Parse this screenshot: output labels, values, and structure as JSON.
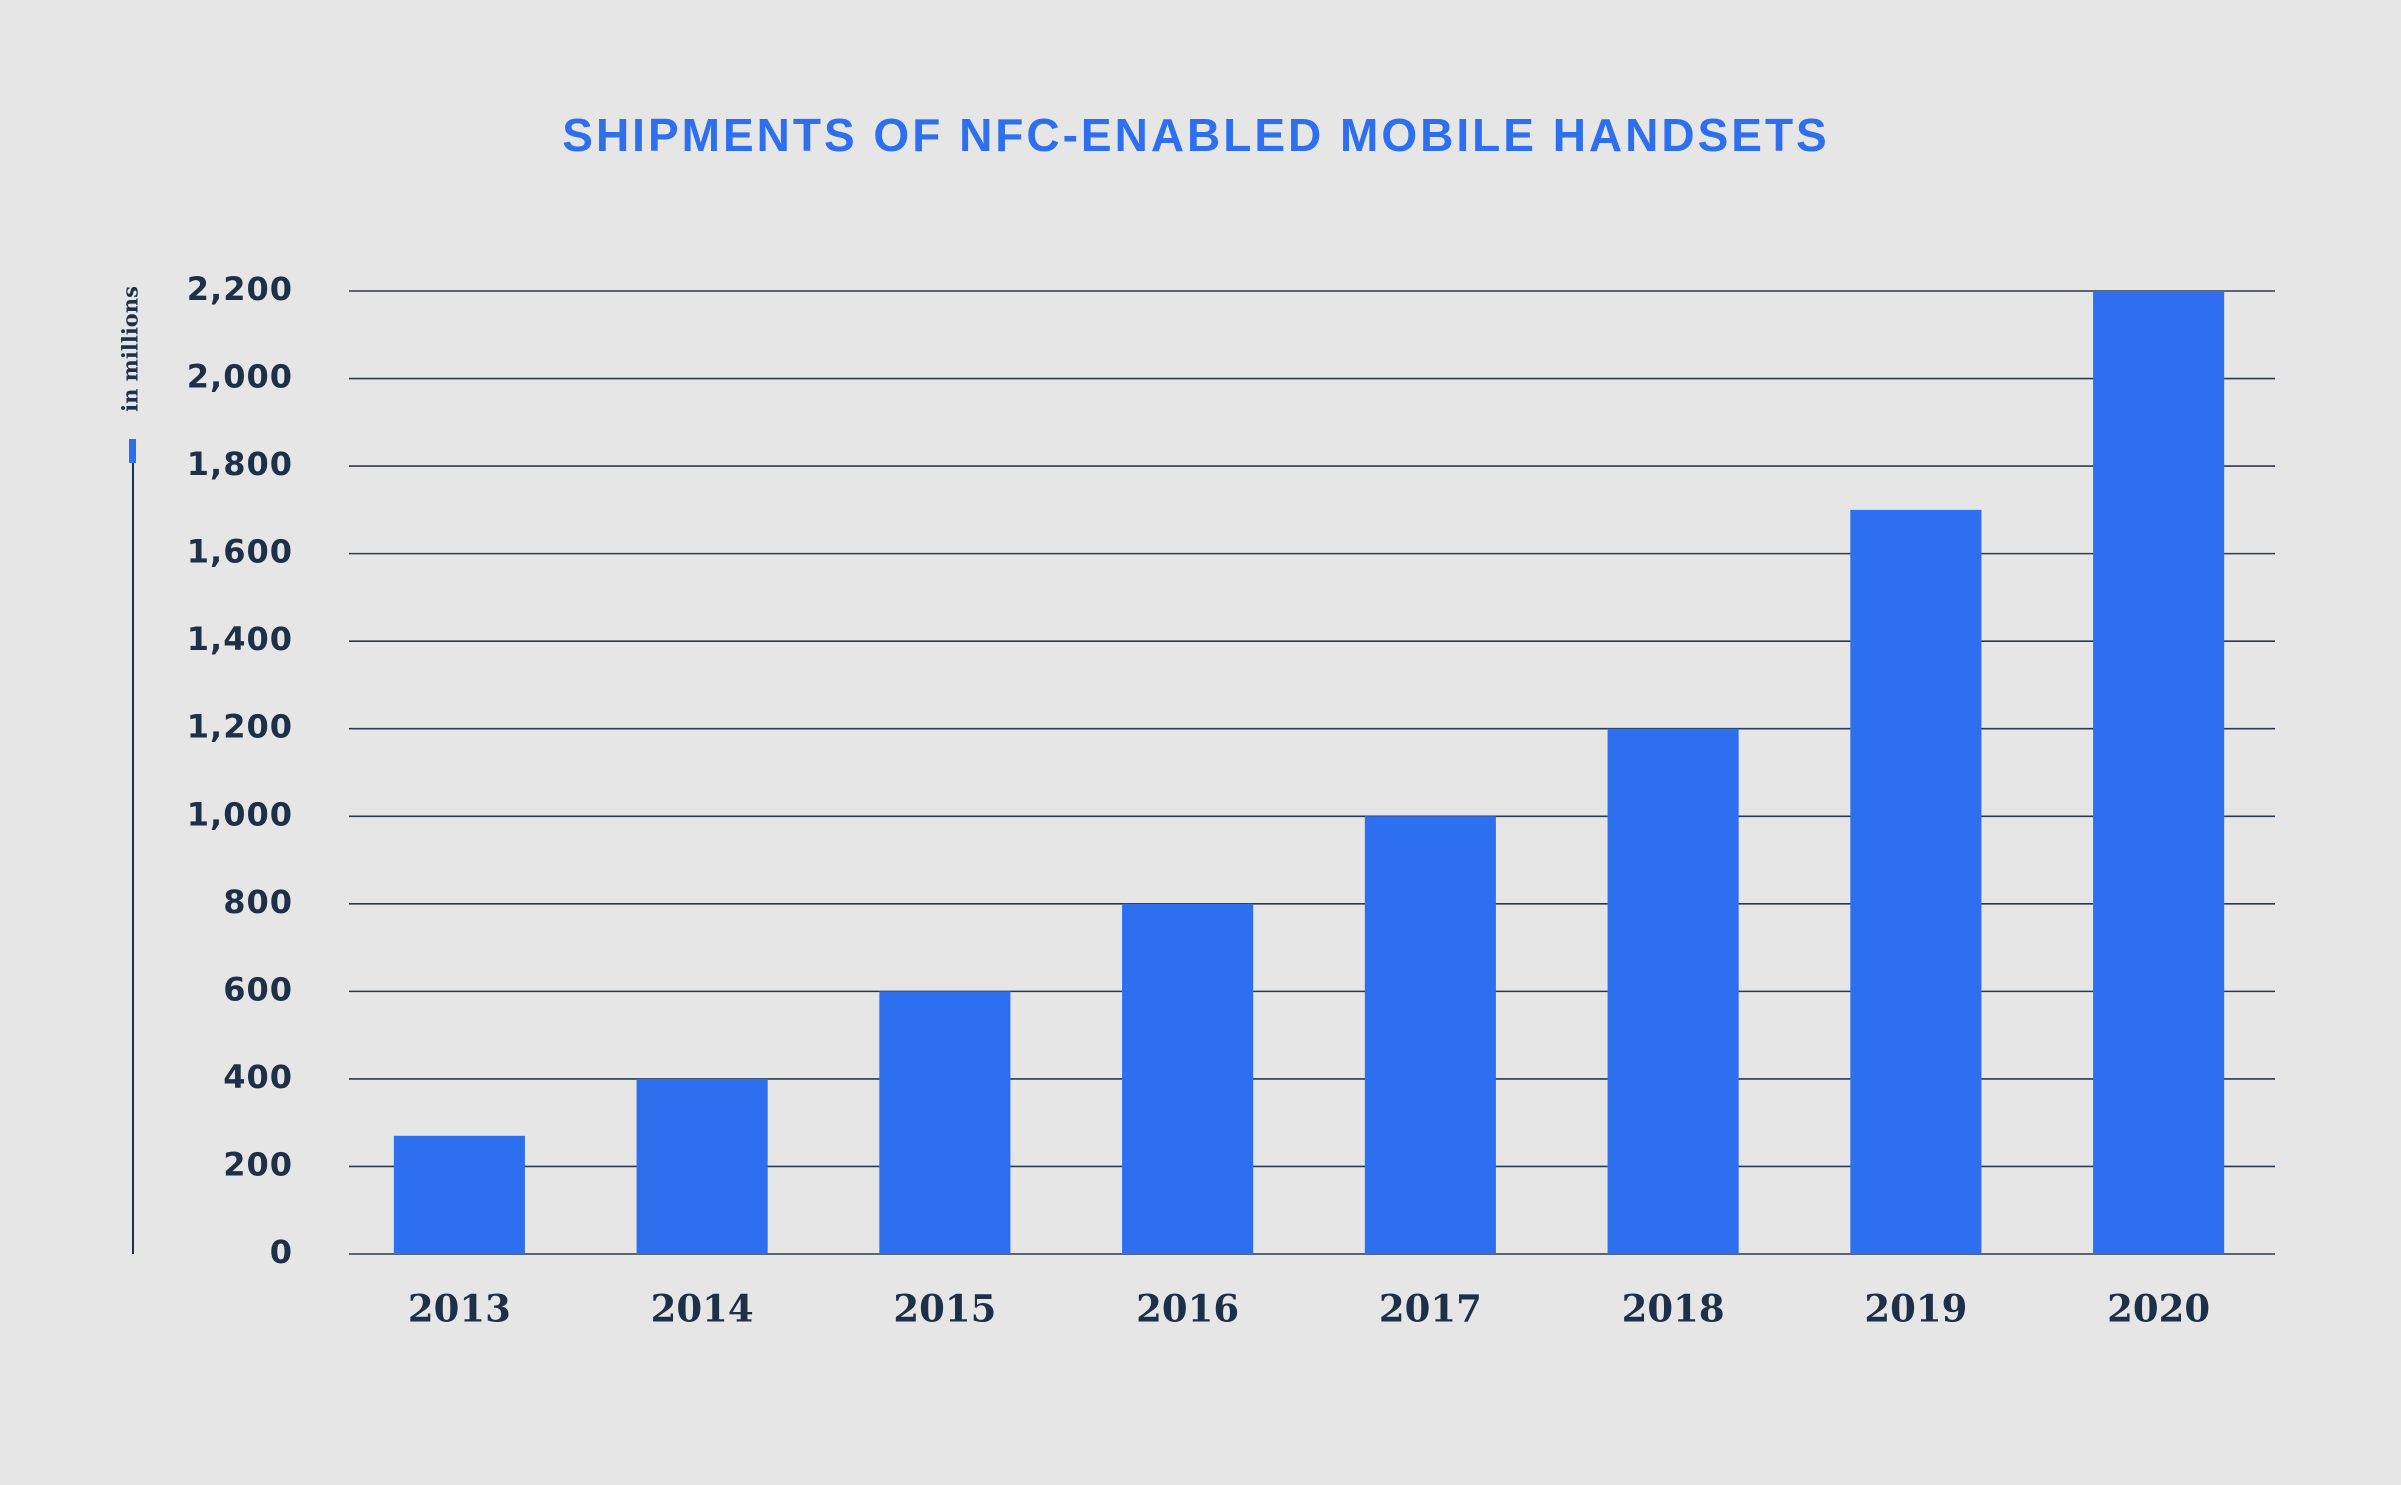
{
  "chart_data": {
    "type": "bar",
    "title": "SHIPMENTS OF NFC-ENABLED MOBILE HANDSETS",
    "y_label": "in millions",
    "categories": [
      "2013",
      "2014",
      "2015",
      "2016",
      "2017",
      "2018",
      "2019",
      "2020"
    ],
    "values": [
      270,
      400,
      600,
      800,
      1000,
      1200,
      1700,
      2200
    ],
    "color": "#2d6fef",
    "ylim": [
      0,
      2200
    ],
    "yticks": [
      0,
      200,
      400,
      600,
      800,
      {
        "value": 1000,
        "label": "1,000"
      },
      {
        "value": 1200,
        "label": "1,200"
      },
      {
        "value": 1400,
        "label": "1,400"
      },
      {
        "value": 1600,
        "label": "1,600"
      },
      {
        "value": 1800,
        "label": "1,800"
      },
      {
        "value": 2000,
        "label": "2,000"
      },
      {
        "value": 2200,
        "label": "2,200"
      }
    ],
    "grid": true
  }
}
